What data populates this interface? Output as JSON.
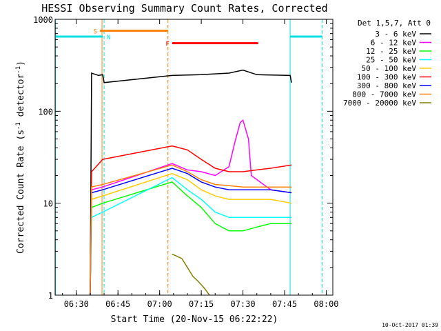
{
  "chart_data": {
    "type": "line",
    "title": "HESSI Observing Summary Count Rates, Corrected",
    "xlabel": "Start Time (20-Nov-15 06:22:22)",
    "ylabel": "Corrected Count Rate (s",
    "ylabel_sup1": "-1",
    "ylabel_mid": " detector",
    "ylabel_sup2": "-1",
    "ylabel_end": ")",
    "yscale": "log",
    "ylim": [
      1,
      1000
    ],
    "xlim": [
      "06:22:22",
      "08:02:22"
    ],
    "x_ticks": [
      "06:30",
      "06:45",
      "07:00",
      "07:15",
      "07:30",
      "07:45",
      "08:00"
    ],
    "y_ticks": [
      "1",
      "10",
      "100",
      "1000"
    ],
    "legend_position": "top-right",
    "legend_header": "Det 1,5,7, Att 0",
    "timestamp": "10-Oct-2017 01:39",
    "series": [
      {
        "name": "3 - 6 keV",
        "color": "#000000",
        "points": [
          [
            "06:35:00",
            1.0
          ],
          [
            "06:35:30",
            260
          ],
          [
            "06:38:00",
            245
          ],
          [
            "06:39:30",
            250
          ],
          [
            "06:40:00",
            205
          ],
          [
            "07:04:30",
            245
          ],
          [
            "07:15:00",
            250
          ],
          [
            "07:25:00",
            260
          ],
          [
            "07:30:00",
            280
          ],
          [
            "07:35:00",
            250
          ],
          [
            "07:40:00",
            248
          ],
          [
            "07:47:00",
            245
          ],
          [
            "07:47:30",
            205
          ]
        ]
      },
      {
        "name": "6 - 12 keV",
        "color": "#ff00ff",
        "points": [
          [
            "06:35:00",
            1.0
          ],
          [
            "06:35:30",
            14
          ],
          [
            "06:39:30",
            15
          ],
          [
            "07:04:30",
            27
          ],
          [
            "07:10:00",
            23
          ],
          [
            "07:15:00",
            22
          ],
          [
            "07:20:00",
            20
          ],
          [
            "07:25:00",
            25
          ],
          [
            "07:27:00",
            45
          ],
          [
            "07:29:00",
            75
          ],
          [
            "07:30:00",
            80
          ],
          [
            "07:32:00",
            50
          ],
          [
            "07:33:00",
            20
          ],
          [
            "07:40:00",
            14
          ],
          [
            "07:47:30",
            13
          ]
        ]
      },
      {
        "name": "12 - 25 keV",
        "color": "#00ff00",
        "points": [
          [
            "06:35:00",
            1.0
          ],
          [
            "06:35:30",
            9
          ],
          [
            "06:39:30",
            10
          ],
          [
            "07:04:30",
            17
          ],
          [
            "07:10:00",
            12
          ],
          [
            "07:15:00",
            9
          ],
          [
            "07:20:00",
            6
          ],
          [
            "07:25:00",
            5
          ],
          [
            "07:30:00",
            5
          ],
          [
            "07:35:00",
            5.5
          ],
          [
            "07:40:00",
            6
          ],
          [
            "07:47:30",
            6
          ]
        ]
      },
      {
        "name": "25 - 50 keV",
        "color": "#00ffff",
        "points": [
          [
            "06:35:00",
            1.0
          ],
          [
            "06:35:30",
            7
          ],
          [
            "06:39:30",
            8
          ],
          [
            "07:04:30",
            19
          ],
          [
            "07:10:00",
            14
          ],
          [
            "07:15:00",
            11
          ],
          [
            "07:20:00",
            8
          ],
          [
            "07:25:00",
            7
          ],
          [
            "07:30:00",
            7
          ],
          [
            "07:35:00",
            7
          ],
          [
            "07:40:00",
            7
          ],
          [
            "07:47:30",
            7
          ]
        ]
      },
      {
        "name": "50 - 100 keV",
        "color": "#ffcc00",
        "points": [
          [
            "06:35:00",
            1.0
          ],
          [
            "06:35:30",
            11
          ],
          [
            "06:39:30",
            12
          ],
          [
            "07:04:30",
            21
          ],
          [
            "07:10:00",
            18
          ],
          [
            "07:15:00",
            14
          ],
          [
            "07:20:00",
            12
          ],
          [
            "07:25:00",
            11
          ],
          [
            "07:30:00",
            11
          ],
          [
            "07:40:00",
            11
          ],
          [
            "07:47:30",
            10
          ]
        ]
      },
      {
        "name": "100 - 300 keV",
        "color": "#ff0000",
        "points": [
          [
            "06:35:00",
            1.0
          ],
          [
            "06:35:30",
            22
          ],
          [
            "06:39:30",
            30
          ],
          [
            "07:04:30",
            42
          ],
          [
            "07:10:00",
            38
          ],
          [
            "07:15:00",
            30
          ],
          [
            "07:20:00",
            24
          ],
          [
            "07:25:00",
            22
          ],
          [
            "07:30:00",
            22
          ],
          [
            "07:35:00",
            23
          ],
          [
            "07:40:00",
            24
          ],
          [
            "07:47:30",
            26
          ]
        ]
      },
      {
        "name": "300 - 800 keV",
        "color": "#0000ff",
        "points": [
          [
            "06:35:00",
            1.0
          ],
          [
            "06:35:30",
            13
          ],
          [
            "06:39:30",
            14
          ],
          [
            "07:04:30",
            24
          ],
          [
            "07:10:00",
            21
          ],
          [
            "07:15:00",
            17
          ],
          [
            "07:20:00",
            15
          ],
          [
            "07:25:00",
            14
          ],
          [
            "07:30:00",
            14
          ],
          [
            "07:40:00",
            14
          ],
          [
            "07:47:30",
            13
          ]
        ]
      },
      {
        "name": "800 - 7000 keV",
        "color": "#ff8000",
        "points": [
          [
            "06:35:00",
            1.0
          ],
          [
            "06:35:30",
            15
          ],
          [
            "06:39:30",
            16
          ],
          [
            "07:04:30",
            26
          ],
          [
            "07:10:00",
            22
          ],
          [
            "07:15:00",
            18
          ],
          [
            "07:20:00",
            16
          ],
          [
            "07:25:00",
            15.5
          ],
          [
            "07:30:00",
            15
          ],
          [
            "07:40:00",
            15
          ],
          [
            "07:47:30",
            15
          ]
        ]
      },
      {
        "name": "7000 - 20000 keV",
        "color": "#808000",
        "points": [
          [
            "07:04:30",
            2.8
          ],
          [
            "07:08:00",
            2.5
          ],
          [
            "07:10:00",
            2.0
          ],
          [
            "07:12:00",
            1.6
          ],
          [
            "07:14:00",
            1.4
          ],
          [
            "07:16:00",
            1.2
          ],
          [
            "07:18:00",
            1.0
          ]
        ]
      }
    ],
    "flags": [
      {
        "label": "S",
        "color": "#ff8000",
        "start": "06:38:30",
        "end": "07:03:00",
        "level": 750
      },
      {
        "label": "N",
        "color": "#00e0e0",
        "start": "06:22:22",
        "end": "06:39:30",
        "level": 650
      },
      {
        "label": "F",
        "color": "#ff0000",
        "start": "07:04:30",
        "end": "07:35:30",
        "level": 550
      },
      {
        "label": "",
        "color": "#00e0e0",
        "start": "07:47:00",
        "end": "07:58:30",
        "level": 650
      }
    ],
    "vertical_lines": [
      {
        "time": "06:22:30",
        "color": "#00e0e0",
        "style": "solid"
      },
      {
        "time": "06:39:15",
        "color": "#ff8000",
        "style": "solid"
      },
      {
        "time": "06:40:00",
        "color": "#00e0e0",
        "style": "dashed"
      },
      {
        "time": "07:03:00",
        "color": "#ff8000",
        "style": "dashed"
      },
      {
        "time": "07:47:00",
        "color": "#00e0e0",
        "style": "solid"
      },
      {
        "time": "07:58:30",
        "color": "#00e0e0",
        "style": "dashed"
      }
    ]
  }
}
